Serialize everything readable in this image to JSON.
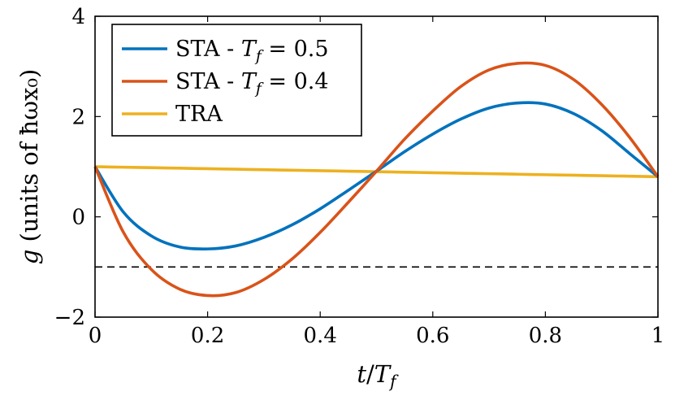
{
  "chart_data": {
    "type": "line",
    "xlabel": "t/T_f",
    "ylabel": "g (units of ħωx₀)",
    "xlim": [
      0,
      1
    ],
    "ylim": [
      -2,
      4
    ],
    "xticks": [
      0,
      0.2,
      0.4,
      0.6,
      0.8,
      1
    ],
    "yticks": [
      -2,
      0,
      2,
      4
    ],
    "x_tick_labels": [
      "0",
      "0.2",
      "0.4",
      "0.6",
      "0.8",
      "1"
    ],
    "y_tick_labels": [
      "−2",
      "0",
      "2",
      "4"
    ],
    "grid": false,
    "legend_position": "top-left",
    "x": [
      0,
      0.05,
      0.1,
      0.15,
      0.2,
      0.25,
      0.3,
      0.35,
      0.4,
      0.45,
      0.5,
      0.55,
      0.6,
      0.65,
      0.7,
      0.75,
      0.8,
      0.85,
      0.9,
      0.95,
      1
    ],
    "series": [
      {
        "name": "STA - T_f = 0.5",
        "color": "#0072BD",
        "values": [
          1.0,
          0.1,
          -0.38,
          -0.6,
          -0.64,
          -0.58,
          -0.41,
          -0.16,
          0.16,
          0.53,
          0.91,
          1.3,
          1.65,
          1.95,
          2.17,
          2.27,
          2.25,
          2.06,
          1.72,
          1.26,
          0.8
        ]
      },
      {
        "name": "STA - T_f = 0.4",
        "color": "#D95319",
        "values": [
          1.0,
          -0.3,
          -1.05,
          -1.44,
          -1.57,
          -1.51,
          -1.25,
          -0.84,
          -0.31,
          0.29,
          0.91,
          1.55,
          2.11,
          2.6,
          2.93,
          3.06,
          3.02,
          2.74,
          2.24,
          1.58,
          0.8
        ]
      },
      {
        "name": "TRA",
        "color": "#EDB120",
        "values": [
          1.0,
          0.99,
          0.98,
          0.97,
          0.96,
          0.95,
          0.94,
          0.93,
          0.92,
          0.91,
          0.9,
          0.89,
          0.88,
          0.87,
          0.86,
          0.85,
          0.84,
          0.83,
          0.82,
          0.81,
          0.8
        ]
      }
    ],
    "reference_line": {
      "y": -1,
      "style": "dashed",
      "color": "#000000"
    }
  }
}
